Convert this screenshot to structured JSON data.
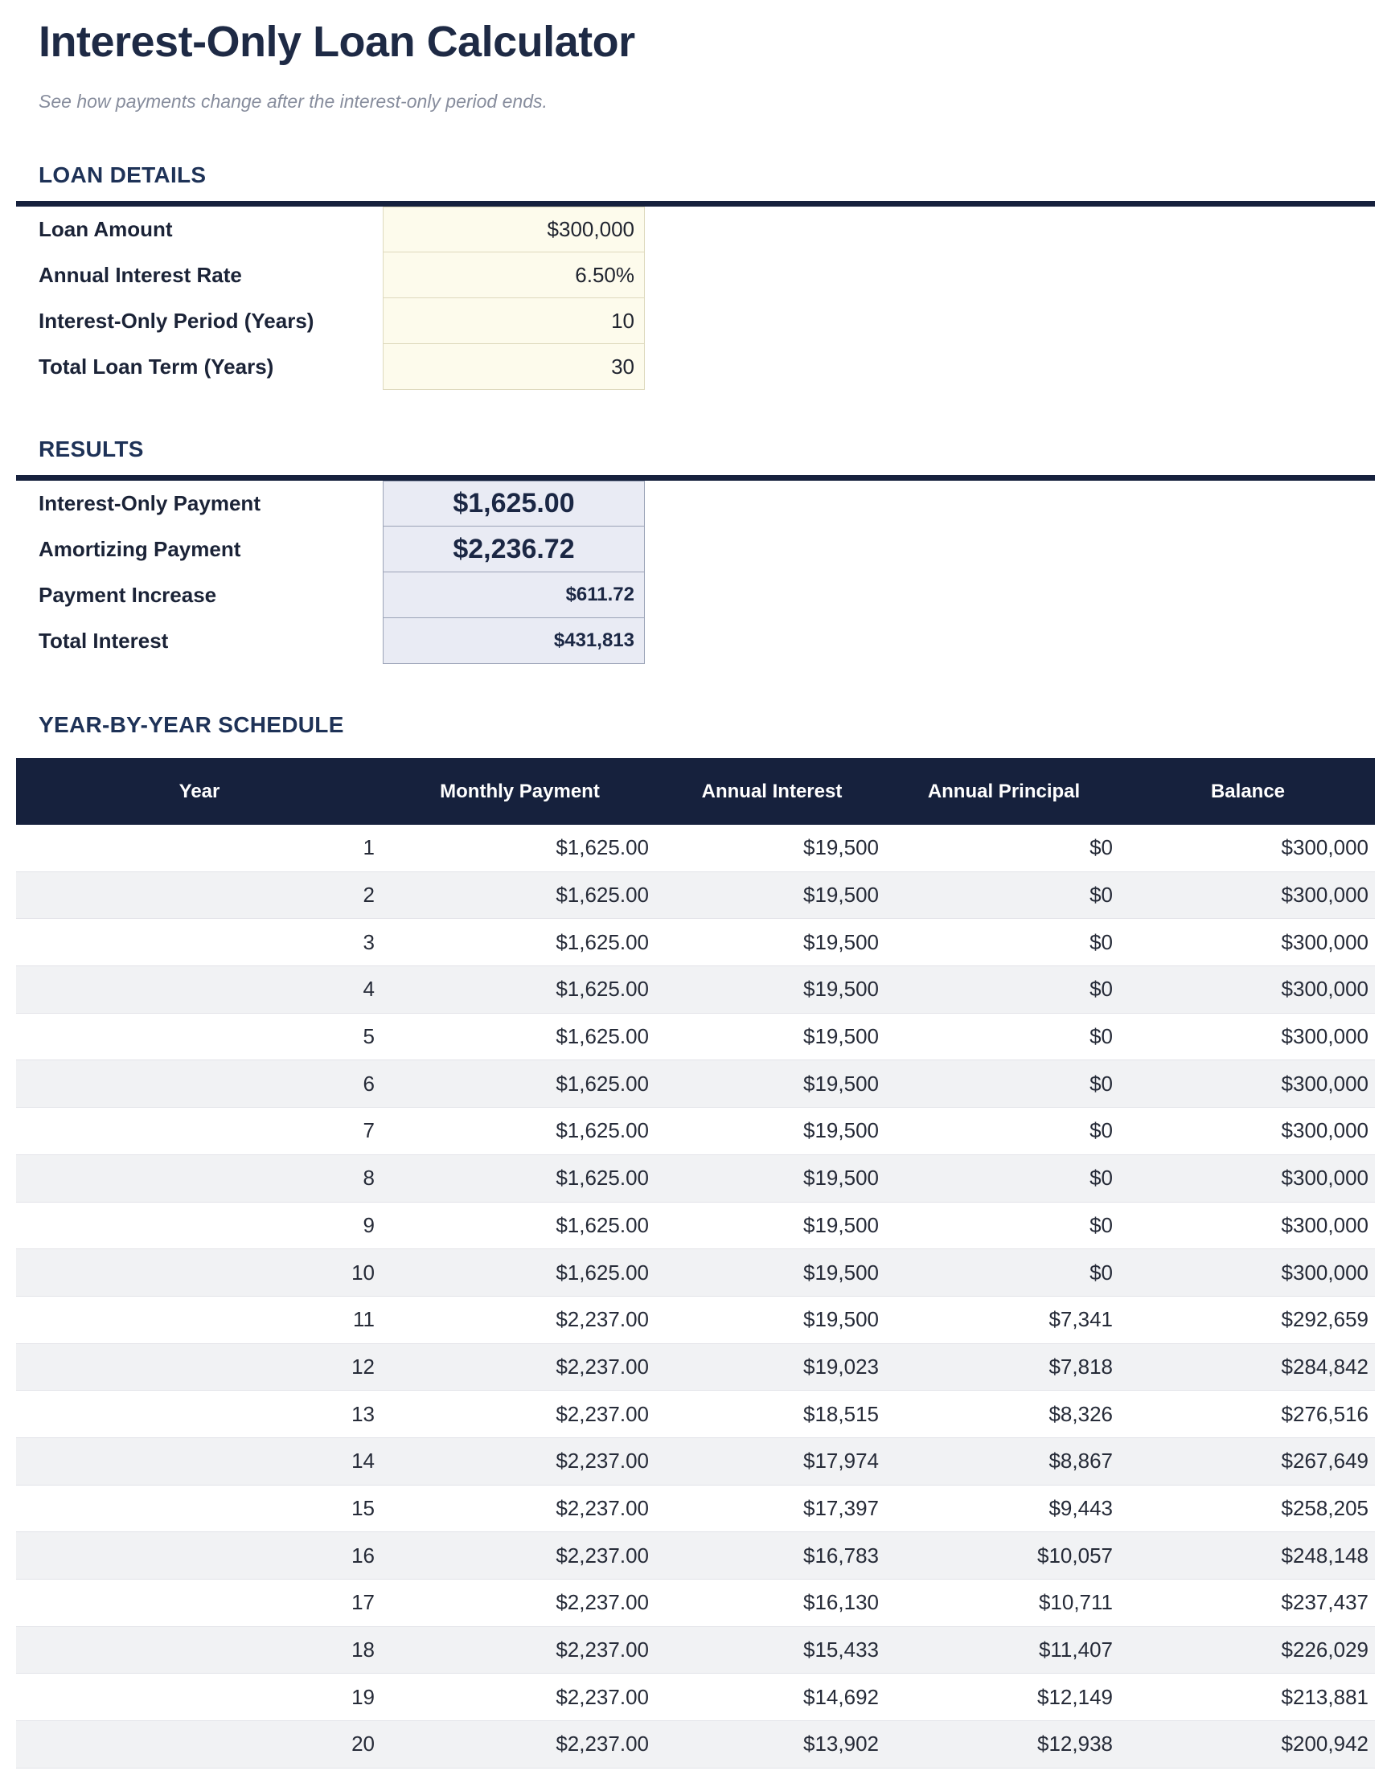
{
  "page": {
    "title": "Interest-Only Loan Calculator",
    "subtitle": "See how payments change after the interest-only period ends."
  },
  "loan_details": {
    "section_title": "LOAN DETAILS",
    "fields": [
      {
        "label": "Loan Amount",
        "value": "$300,000"
      },
      {
        "label": "Annual Interest Rate",
        "value": "6.50%"
      },
      {
        "label": "Interest-Only Period (Years)",
        "value": "10"
      },
      {
        "label": "Total Loan Term (Years)",
        "value": "30"
      }
    ]
  },
  "results": {
    "section_title": "RESULTS",
    "fields": [
      {
        "label": "Interest-Only Payment",
        "value": "$1,625.00",
        "emphasis": "large"
      },
      {
        "label": "Amortizing Payment",
        "value": "$2,236.72",
        "emphasis": "large"
      },
      {
        "label": "Payment Increase",
        "value": "$611.72",
        "emphasis": "normal"
      },
      {
        "label": "Total Interest",
        "value": "$431,813",
        "emphasis": "normal"
      }
    ]
  },
  "schedule": {
    "section_title": "YEAR-BY-YEAR SCHEDULE",
    "columns": [
      "Year",
      "Monthly Payment",
      "Annual Interest",
      "Annual Principal",
      "Balance"
    ],
    "rows": [
      [
        "1",
        "$1,625.00",
        "$19,500",
        "$0",
        "$300,000"
      ],
      [
        "2",
        "$1,625.00",
        "$19,500",
        "$0",
        "$300,000"
      ],
      [
        "3",
        "$1,625.00",
        "$19,500",
        "$0",
        "$300,000"
      ],
      [
        "4",
        "$1,625.00",
        "$19,500",
        "$0",
        "$300,000"
      ],
      [
        "5",
        "$1,625.00",
        "$19,500",
        "$0",
        "$300,000"
      ],
      [
        "6",
        "$1,625.00",
        "$19,500",
        "$0",
        "$300,000"
      ],
      [
        "7",
        "$1,625.00",
        "$19,500",
        "$0",
        "$300,000"
      ],
      [
        "8",
        "$1,625.00",
        "$19,500",
        "$0",
        "$300,000"
      ],
      [
        "9",
        "$1,625.00",
        "$19,500",
        "$0",
        "$300,000"
      ],
      [
        "10",
        "$1,625.00",
        "$19,500",
        "$0",
        "$300,000"
      ],
      [
        "11",
        "$2,237.00",
        "$19,500",
        "$7,341",
        "$292,659"
      ],
      [
        "12",
        "$2,237.00",
        "$19,023",
        "$7,818",
        "$284,842"
      ],
      [
        "13",
        "$2,237.00",
        "$18,515",
        "$8,326",
        "$276,516"
      ],
      [
        "14",
        "$2,237.00",
        "$17,974",
        "$8,867",
        "$267,649"
      ],
      [
        "15",
        "$2,237.00",
        "$17,397",
        "$9,443",
        "$258,205"
      ],
      [
        "16",
        "$2,237.00",
        "$16,783",
        "$10,057",
        "$248,148"
      ],
      [
        "17",
        "$2,237.00",
        "$16,130",
        "$10,711",
        "$237,437"
      ],
      [
        "18",
        "$2,237.00",
        "$15,433",
        "$11,407",
        "$226,029"
      ],
      [
        "19",
        "$2,237.00",
        "$14,692",
        "$12,149",
        "$213,881"
      ],
      [
        "20",
        "$2,237.00",
        "$13,902",
        "$12,938",
        "$200,942"
      ]
    ]
  },
  "colors": {
    "accent_navy": "#16213d",
    "title_navy": "#1e2a45",
    "section_navy": "#1e3257",
    "input_cell_bg": "#fdfbec",
    "input_cell_border": "#ded9bd",
    "result_cell_bg": "#e9ebf4",
    "result_cell_border": "#9ba3b7",
    "table_alt_row_bg": "#f1f2f4"
  }
}
